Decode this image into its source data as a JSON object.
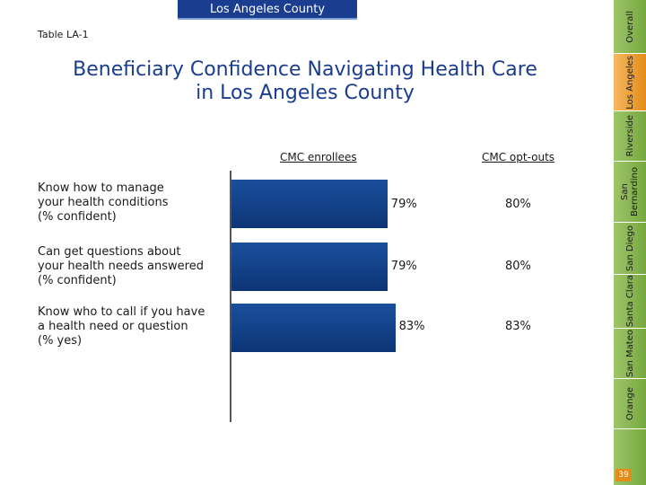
{
  "header": {
    "county_tab": "Los Angeles County"
  },
  "table_id": "Table LA-1",
  "title_line1": "Beneficiary Confidence Navigating Health Care",
  "title_line2": "in Los Angeles County",
  "columns": {
    "enrollees": "CMC enrollees",
    "optouts": "CMC opt-outs"
  },
  "colors": {
    "bar": "#1a4f9c",
    "header": "#1a3d8f",
    "nav_active": "#e38c1a",
    "nav": "#8cb855"
  },
  "chart_data": {
    "type": "bar",
    "orientation": "horizontal",
    "title": "Beneficiary Confidence Navigating Health Care in Los Angeles County",
    "categories": [
      "Know how to manage your health conditions (% confident)",
      "Can get questions about your health needs answered (% confident)",
      "Know who to call if you have a health need or question (% yes)"
    ],
    "series": [
      {
        "name": "CMC enrollees",
        "values": [
          79,
          79,
          83
        ],
        "labels": [
          "79%",
          "79%",
          "83%"
        ]
      },
      {
        "name": "CMC opt-outs",
        "values": [
          80,
          80,
          83
        ],
        "labels": [
          "80%",
          "80%",
          "83%"
        ]
      }
    ],
    "xlim": [
      0,
      100
    ]
  },
  "rows": [
    {
      "line1": "Know how to manage",
      "line2": "your health conditions",
      "line3": "(% confident)",
      "enrollee": "79%",
      "optout": "80%"
    },
    {
      "line1": "Can get questions about",
      "line2": "your health needs answered",
      "line3": "(% confident)",
      "enrollee": "79%",
      "optout": "80%"
    },
    {
      "line1": "Know who to call if you have",
      "line2": "a health need or question",
      "line3": "(% yes)",
      "enrollee": "83%",
      "optout": "83%"
    }
  ],
  "nav": {
    "items": [
      "Overall",
      "Los Angeles",
      "Riverside",
      "San Bernardino",
      "San Diego",
      "Santa Clara",
      "San Mateo",
      "Orange"
    ],
    "active": "Los Angeles"
  },
  "page_number": "39"
}
